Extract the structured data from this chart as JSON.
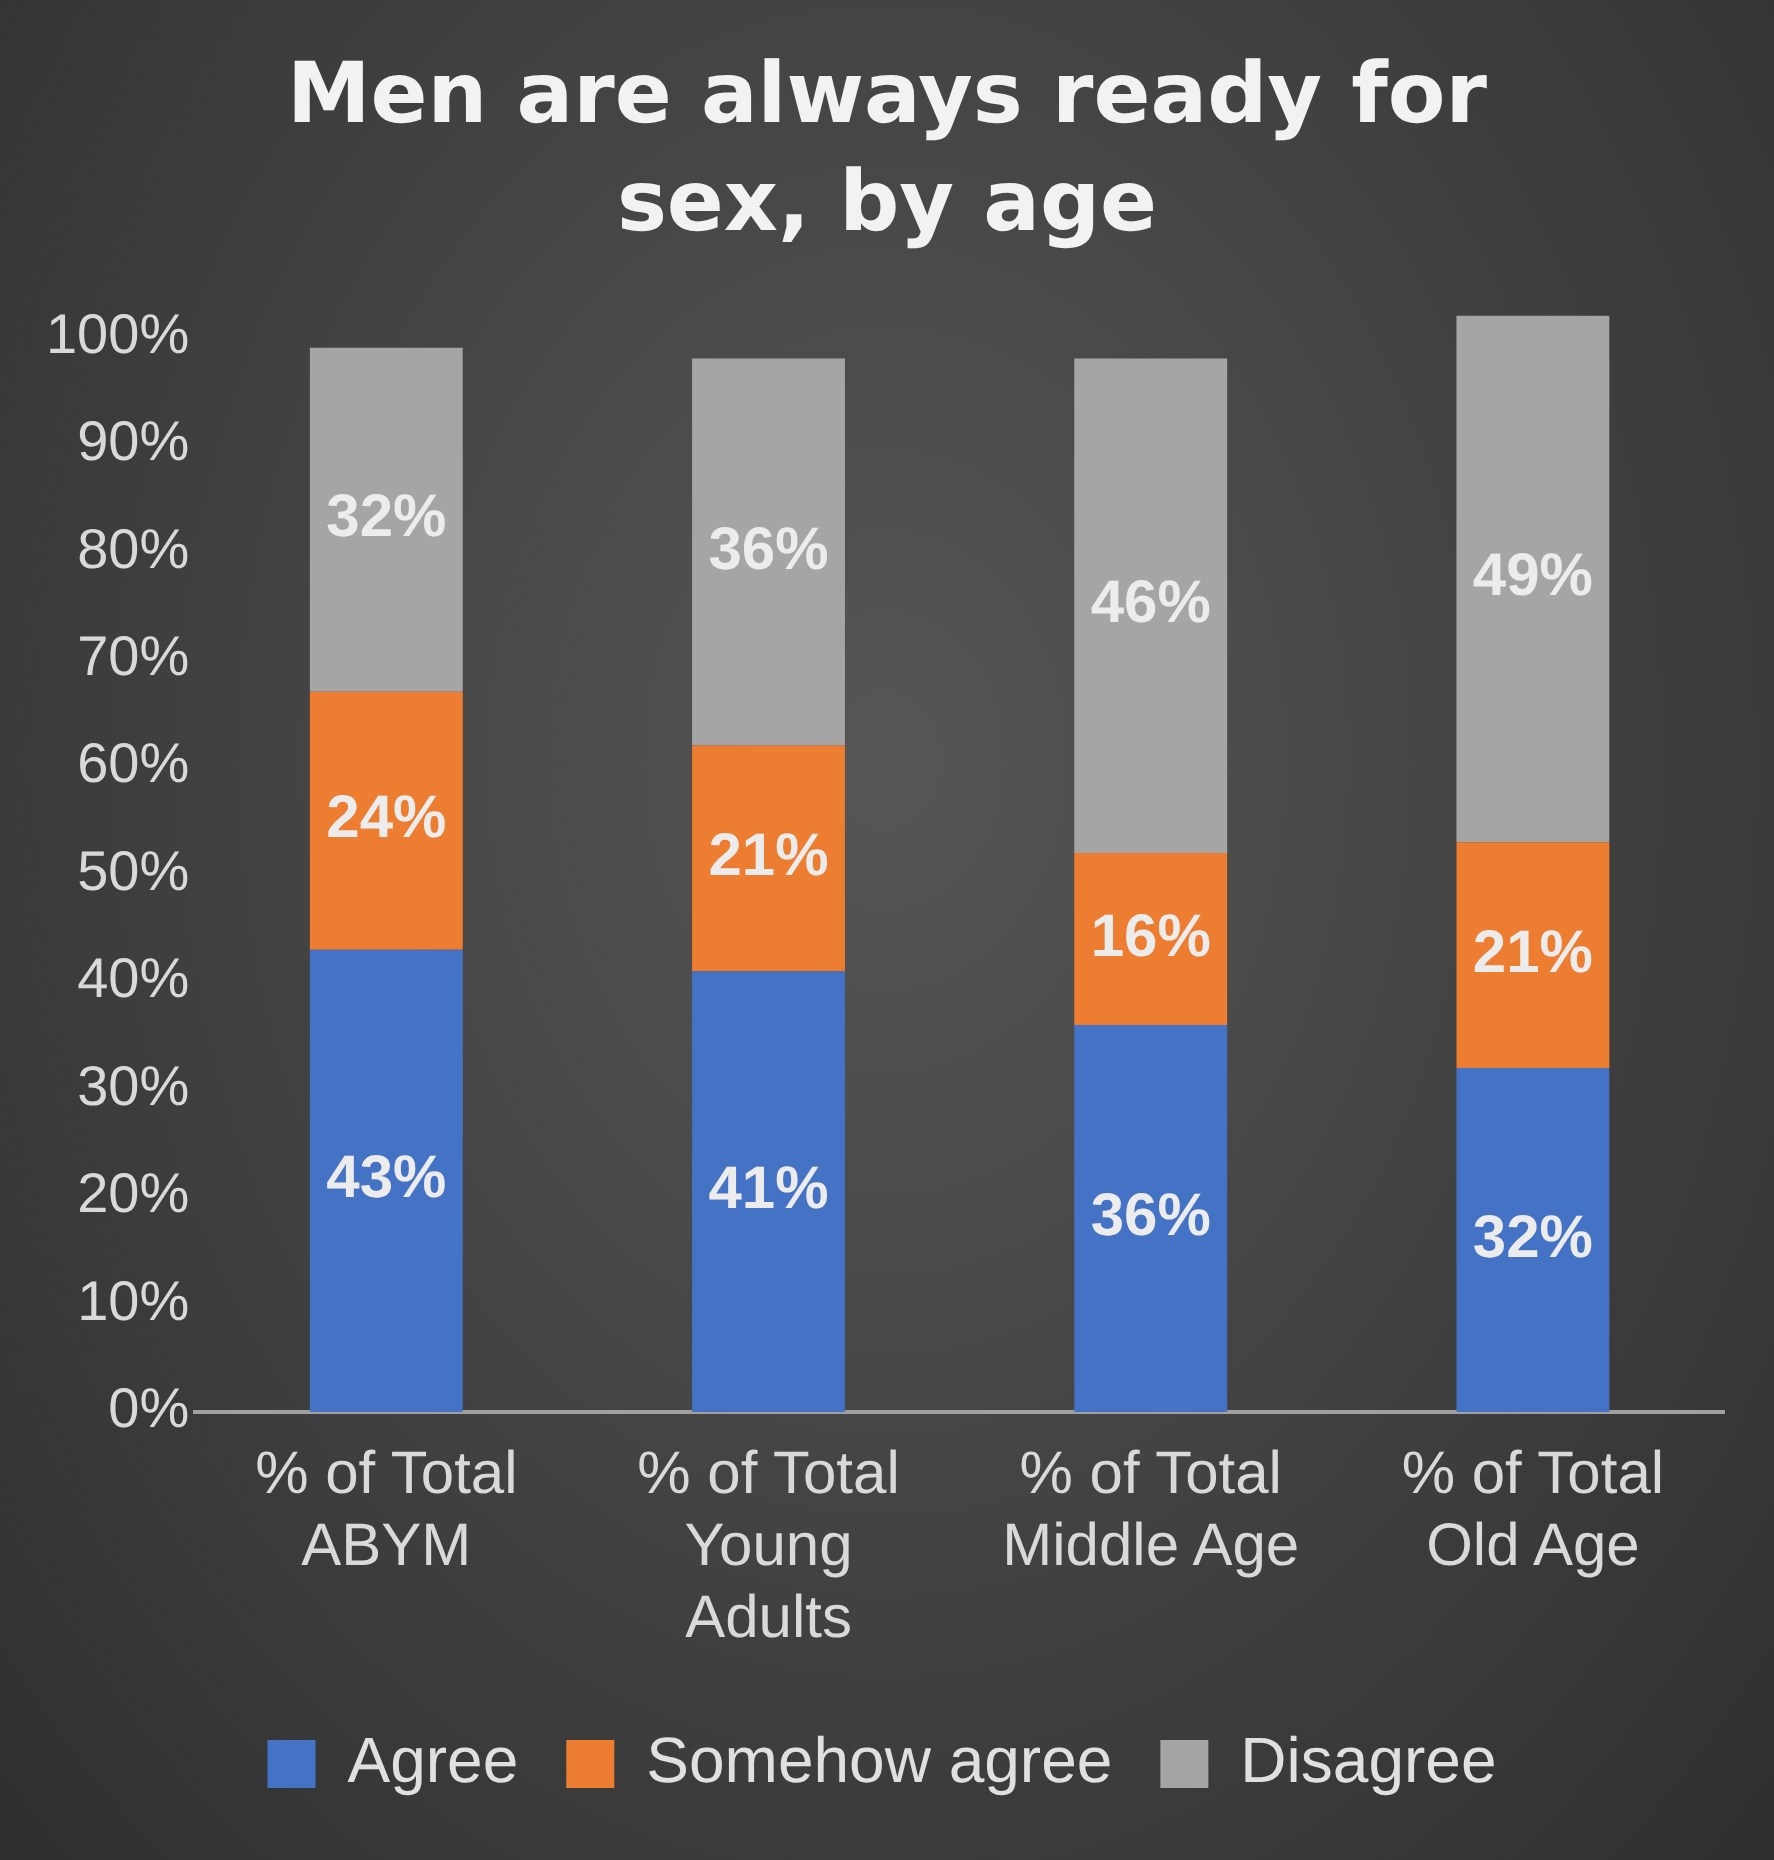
{
  "chart_data": {
    "type": "bar",
    "title": "Men are always ready for sex, by age",
    "stacked": true,
    "categories": [
      "% of Total ABYM",
      "% of Total Young Adults",
      "% of Total Middle Age",
      "% of Total Old Age"
    ],
    "series": [
      {
        "name": "Agree",
        "color": "#4472c4",
        "values": [
          43,
          41,
          36,
          32
        ],
        "value_labels": [
          "43%",
          "41%",
          "36%",
          "32%"
        ]
      },
      {
        "name": "Somehow agree",
        "color": "#ed7d31",
        "values": [
          24,
          21,
          16,
          21
        ],
        "value_labels": [
          "24%",
          "21%",
          "16%",
          "21%"
        ]
      },
      {
        "name": "Disagree",
        "color": "#a5a5a5",
        "values": [
          32,
          36,
          46,
          49
        ],
        "value_labels": [
          "32%",
          "36%",
          "46%",
          "49%"
        ]
      }
    ],
    "ylim": [
      0,
      102
    ],
    "yticks": [
      {
        "value": 0,
        "label": "0%"
      },
      {
        "value": 10,
        "label": "10%"
      },
      {
        "value": 20,
        "label": "20%"
      },
      {
        "value": 30,
        "label": "30%"
      },
      {
        "value": 40,
        "label": "40%"
      },
      {
        "value": 50,
        "label": "50%"
      },
      {
        "value": 60,
        "label": "60%"
      },
      {
        "value": 70,
        "label": "70%"
      },
      {
        "value": 80,
        "label": "80%"
      },
      {
        "value": 90,
        "label": "90%"
      },
      {
        "value": 100,
        "label": "100%"
      }
    ],
    "grid": false,
    "legend": "bottom"
  }
}
